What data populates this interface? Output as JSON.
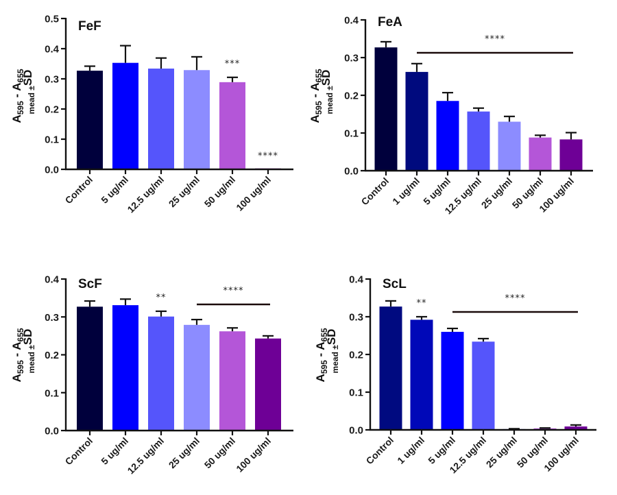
{
  "chart_data": [
    {
      "type": "bar",
      "title": "FeF",
      "ylabel_main": "A595 - A655",
      "ylabel_sub": "mead ±SD",
      "ylim": [
        0,
        0.5
      ],
      "yticks": [
        "0.0",
        "0.1",
        "0.2",
        "0.3",
        "0.4",
        "0.5"
      ],
      "categories": [
        "Control",
        "5 ug/ml",
        "12.5 ug/ml",
        "25 ug/ml",
        "50 ug/ml",
        "100 ug/ml"
      ],
      "values": [
        0.327,
        0.353,
        0.334,
        0.329,
        0.289,
        0.003
      ],
      "sd": [
        0.015,
        0.057,
        0.035,
        0.044,
        0.016,
        0.0
      ],
      "colors": [
        "#00003c",
        "#0000ff",
        "#5555fb",
        "#8c8cff",
        "#b456d8",
        "#6e0096"
      ],
      "significance": [
        {
          "label": "***",
          "category_index": 4
        },
        {
          "label": "****",
          "category_index": 5
        }
      ]
    },
    {
      "type": "bar",
      "title": "FeA",
      "ylabel_main": "A595 - A655",
      "ylabel_sub": "mead ±SD",
      "ylim": [
        0,
        0.4
      ],
      "yticks": [
        "0.0",
        "0.1",
        "0.2",
        "0.3",
        "0.4"
      ],
      "categories": [
        "Control",
        "1 ug/ml",
        "5 ug/ml",
        "12.5 ug/ml",
        "25 ug/ml",
        "50 ug/ml",
        "100 ug/ml"
      ],
      "values": [
        0.327,
        0.262,
        0.185,
        0.157,
        0.13,
        0.088,
        0.083
      ],
      "sd": [
        0.015,
        0.022,
        0.022,
        0.009,
        0.014,
        0.006,
        0.018
      ],
      "colors": [
        "#00003c",
        "#000a7e",
        "#0000ff",
        "#5555fb",
        "#8c8cff",
        "#b456d8",
        "#6e0096"
      ],
      "significance": [
        {
          "label": "****",
          "from_index": 1,
          "to_index": 6
        }
      ]
    },
    {
      "type": "bar",
      "title": "ScF",
      "ylabel_main": "A595 - A655",
      "ylabel_sub": "mead ±SD",
      "ylim": [
        0,
        0.4
      ],
      "yticks": [
        "0.0",
        "0.1",
        "0.2",
        "0.3",
        "0.4"
      ],
      "categories": [
        "Control",
        "5 ug/ml",
        "12.5 ug/ml",
        "25 ug/ml",
        "50 ug/ml",
        "100 ug/ml"
      ],
      "values": [
        0.327,
        0.331,
        0.301,
        0.279,
        0.262,
        0.243
      ],
      "sd": [
        0.015,
        0.016,
        0.014,
        0.014,
        0.009,
        0.007
      ],
      "colors": [
        "#00003c",
        "#0000ff",
        "#5555fb",
        "#8c8cff",
        "#b456d8",
        "#6e0096"
      ],
      "significance": [
        {
          "label": "**",
          "category_index": 2
        },
        {
          "label": "****",
          "from_index": 3,
          "to_index": 5
        }
      ]
    },
    {
      "type": "bar",
      "title": "ScL",
      "ylabel_main": "A595 - A655",
      "ylabel_sub": "mead ±SD",
      "ylim": [
        0,
        0.4
      ],
      "yticks": [
        "0.0",
        "0.1",
        "0.2",
        "0.3",
        "0.4"
      ],
      "categories": [
        "Control",
        "1 ug/ml",
        "5 ug/ml",
        "12.5 ug/ml",
        "25 ug/ml",
        "50 ug/ml",
        "100 ug/ml"
      ],
      "values": [
        0.327,
        0.292,
        0.26,
        0.234,
        0.002,
        0.004,
        0.009
      ],
      "sd": [
        0.015,
        0.008,
        0.009,
        0.008,
        0.001,
        0.001,
        0.004
      ],
      "colors": [
        "#000a80",
        "#0008b8",
        "#0000ff",
        "#5555fb",
        "#8c8cff",
        "#b456d8",
        "#6e0096"
      ],
      "significance": [
        {
          "label": "**",
          "category_index": 1
        },
        {
          "label": "****",
          "from_index": 2,
          "to_index": 6
        }
      ]
    }
  ]
}
